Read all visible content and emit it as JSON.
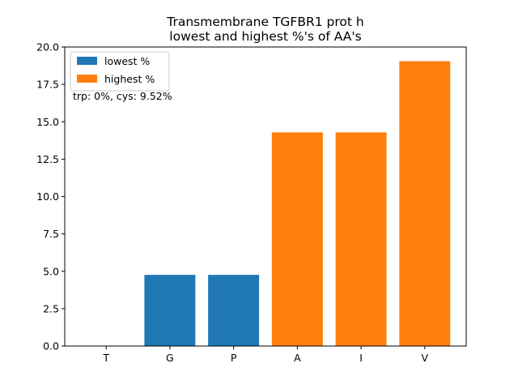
{
  "chart_data": {
    "type": "bar",
    "title_lines": [
      "Transmembrane TGFBR1 prot h",
      "lowest and highest %'s of AA's"
    ],
    "xlabel": "",
    "ylabel": "",
    "categories": [
      "T",
      "G",
      "P",
      "A",
      "I",
      "V"
    ],
    "series": [
      {
        "name": "lowest %",
        "color": "#1f77b4",
        "values": [
          0,
          4.76,
          4.76,
          null,
          null,
          null
        ]
      },
      {
        "name": "highest %",
        "color": "#ff7f0e",
        "values": [
          null,
          null,
          null,
          14.29,
          14.29,
          19.05
        ]
      }
    ],
    "ylim": [
      0,
      20
    ],
    "yticks": [
      "0.0",
      "2.5",
      "5.0",
      "7.5",
      "10.0",
      "12.5",
      "15.0",
      "17.5",
      "20.0"
    ],
    "annotation": "trp: 0%, cys: 9.52%",
    "legend": "top-left",
    "grid": false
  }
}
